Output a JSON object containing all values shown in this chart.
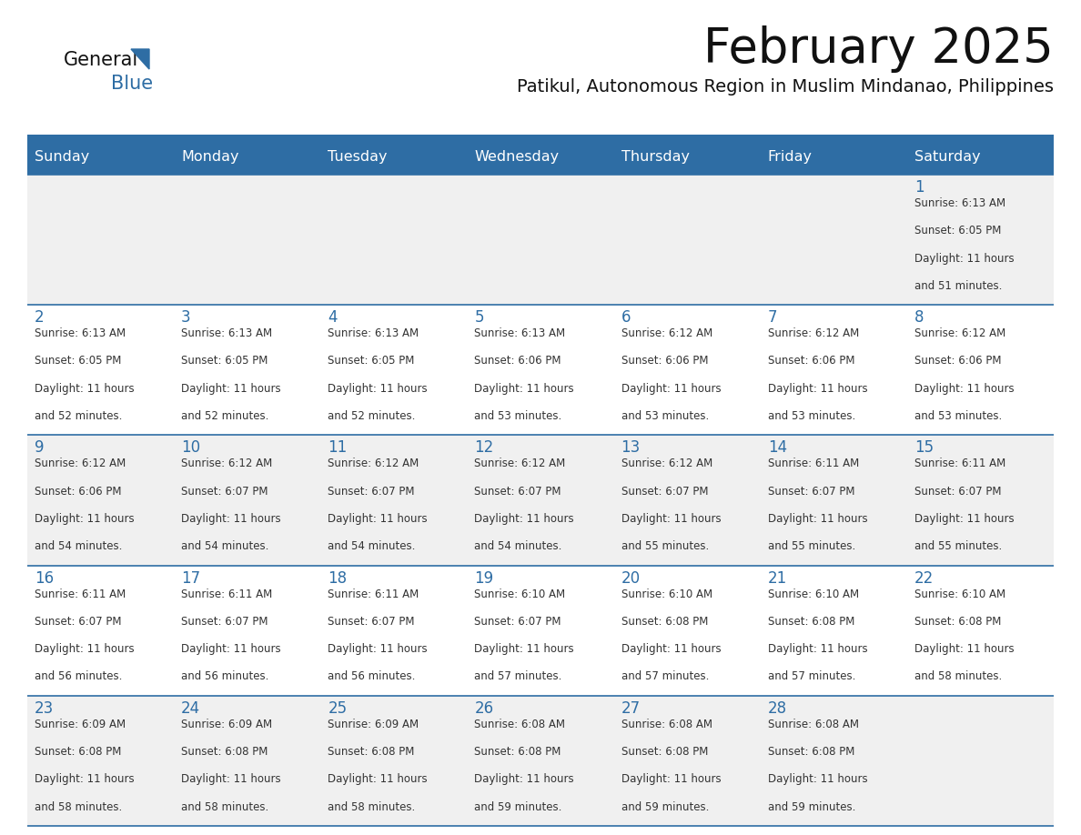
{
  "title": "February 2025",
  "subtitle": "Patikul, Autonomous Region in Muslim Mindanao, Philippines",
  "header_bg_color": "#2E6DA4",
  "header_text_color": "#FFFFFF",
  "weekdays": [
    "Sunday",
    "Monday",
    "Tuesday",
    "Wednesday",
    "Thursday",
    "Friday",
    "Saturday"
  ],
  "cell_bg_even": "#F0F0F0",
  "cell_bg_odd": "#FFFFFF",
  "cell_border_color": "#2E6DA4",
  "day_text_color": "#2E6DA4",
  "info_text_color": "#333333",
  "title_color": "#111111",
  "subtitle_color": "#111111",
  "logo_general_color": "#111111",
  "logo_blue_color": "#2E6DA4",
  "calendar": [
    [
      null,
      null,
      null,
      null,
      null,
      null,
      1
    ],
    [
      2,
      3,
      4,
      5,
      6,
      7,
      8
    ],
    [
      9,
      10,
      11,
      12,
      13,
      14,
      15
    ],
    [
      16,
      17,
      18,
      19,
      20,
      21,
      22
    ],
    [
      23,
      24,
      25,
      26,
      27,
      28,
      null
    ]
  ],
  "day_data": {
    "1": {
      "sunrise": "6:13 AM",
      "sunset": "6:05 PM",
      "daylight_hours": 11,
      "daylight_minutes": 51
    },
    "2": {
      "sunrise": "6:13 AM",
      "sunset": "6:05 PM",
      "daylight_hours": 11,
      "daylight_minutes": 52
    },
    "3": {
      "sunrise": "6:13 AM",
      "sunset": "6:05 PM",
      "daylight_hours": 11,
      "daylight_minutes": 52
    },
    "4": {
      "sunrise": "6:13 AM",
      "sunset": "6:05 PM",
      "daylight_hours": 11,
      "daylight_minutes": 52
    },
    "5": {
      "sunrise": "6:13 AM",
      "sunset": "6:06 PM",
      "daylight_hours": 11,
      "daylight_minutes": 53
    },
    "6": {
      "sunrise": "6:12 AM",
      "sunset": "6:06 PM",
      "daylight_hours": 11,
      "daylight_minutes": 53
    },
    "7": {
      "sunrise": "6:12 AM",
      "sunset": "6:06 PM",
      "daylight_hours": 11,
      "daylight_minutes": 53
    },
    "8": {
      "sunrise": "6:12 AM",
      "sunset": "6:06 PM",
      "daylight_hours": 11,
      "daylight_minutes": 53
    },
    "9": {
      "sunrise": "6:12 AM",
      "sunset": "6:06 PM",
      "daylight_hours": 11,
      "daylight_minutes": 54
    },
    "10": {
      "sunrise": "6:12 AM",
      "sunset": "6:07 PM",
      "daylight_hours": 11,
      "daylight_minutes": 54
    },
    "11": {
      "sunrise": "6:12 AM",
      "sunset": "6:07 PM",
      "daylight_hours": 11,
      "daylight_minutes": 54
    },
    "12": {
      "sunrise": "6:12 AM",
      "sunset": "6:07 PM",
      "daylight_hours": 11,
      "daylight_minutes": 54
    },
    "13": {
      "sunrise": "6:12 AM",
      "sunset": "6:07 PM",
      "daylight_hours": 11,
      "daylight_minutes": 55
    },
    "14": {
      "sunrise": "6:11 AM",
      "sunset": "6:07 PM",
      "daylight_hours": 11,
      "daylight_minutes": 55
    },
    "15": {
      "sunrise": "6:11 AM",
      "sunset": "6:07 PM",
      "daylight_hours": 11,
      "daylight_minutes": 55
    },
    "16": {
      "sunrise": "6:11 AM",
      "sunset": "6:07 PM",
      "daylight_hours": 11,
      "daylight_minutes": 56
    },
    "17": {
      "sunrise": "6:11 AM",
      "sunset": "6:07 PM",
      "daylight_hours": 11,
      "daylight_minutes": 56
    },
    "18": {
      "sunrise": "6:11 AM",
      "sunset": "6:07 PM",
      "daylight_hours": 11,
      "daylight_minutes": 56
    },
    "19": {
      "sunrise": "6:10 AM",
      "sunset": "6:07 PM",
      "daylight_hours": 11,
      "daylight_minutes": 57
    },
    "20": {
      "sunrise": "6:10 AM",
      "sunset": "6:08 PM",
      "daylight_hours": 11,
      "daylight_minutes": 57
    },
    "21": {
      "sunrise": "6:10 AM",
      "sunset": "6:08 PM",
      "daylight_hours": 11,
      "daylight_minutes": 57
    },
    "22": {
      "sunrise": "6:10 AM",
      "sunset": "6:08 PM",
      "daylight_hours": 11,
      "daylight_minutes": 58
    },
    "23": {
      "sunrise": "6:09 AM",
      "sunset": "6:08 PM",
      "daylight_hours": 11,
      "daylight_minutes": 58
    },
    "24": {
      "sunrise": "6:09 AM",
      "sunset": "6:08 PM",
      "daylight_hours": 11,
      "daylight_minutes": 58
    },
    "25": {
      "sunrise": "6:09 AM",
      "sunset": "6:08 PM",
      "daylight_hours": 11,
      "daylight_minutes": 58
    },
    "26": {
      "sunrise": "6:08 AM",
      "sunset": "6:08 PM",
      "daylight_hours": 11,
      "daylight_minutes": 59
    },
    "27": {
      "sunrise": "6:08 AM",
      "sunset": "6:08 PM",
      "daylight_hours": 11,
      "daylight_minutes": 59
    },
    "28": {
      "sunrise": "6:08 AM",
      "sunset": "6:08 PM",
      "daylight_hours": 11,
      "daylight_minutes": 59
    }
  }
}
